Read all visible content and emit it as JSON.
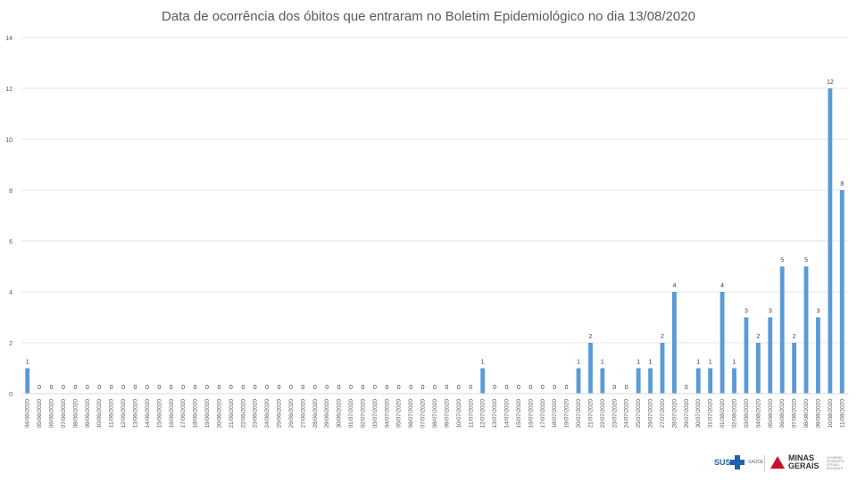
{
  "chart_data": {
    "type": "bar",
    "title": "Data de ocorrência dos óbitos que entraram no Boletim Epidemiológico no dia 13/08/2020",
    "xlabel": "",
    "ylabel": "",
    "ylim": [
      0,
      14
    ],
    "yticks": [
      0,
      2,
      4,
      6,
      8,
      10,
      12,
      14
    ],
    "grid": true,
    "legend": "none",
    "bar_color": "#5b9bd5",
    "categories": [
      "04/06/2020",
      "05/06/2020",
      "06/06/2020",
      "07/06/2020",
      "08/06/2020",
      "09/06/2020",
      "10/06/2020",
      "11/06/2020",
      "12/06/2020",
      "13/06/2020",
      "14/06/2020",
      "15/06/2020",
      "16/06/2020",
      "17/06/2020",
      "18/06/2020",
      "19/06/2020",
      "20/06/2020",
      "21/06/2020",
      "22/06/2020",
      "23/06/2020",
      "24/06/2020",
      "25/06/2020",
      "26/06/2020",
      "27/06/2020",
      "28/06/2020",
      "29/06/2020",
      "30/06/2020",
      "01/07/2020",
      "02/07/2020",
      "03/07/2020",
      "04/07/2020",
      "05/07/2020",
      "06/07/2020",
      "07/07/2020",
      "08/07/2020",
      "09/07/2020",
      "10/07/2020",
      "11/07/2020",
      "12/07/2020",
      "13/07/2020",
      "14/07/2020",
      "15/07/2020",
      "16/07/2020",
      "17/07/2020",
      "18/07/2020",
      "19/07/2020",
      "20/07/2020",
      "21/07/2020",
      "22/07/2020",
      "23/07/2020",
      "24/07/2020",
      "25/07/2020",
      "26/07/2020",
      "27/07/2020",
      "28/07/2020",
      "29/07/2020",
      "30/07/2020",
      "31/07/2020",
      "01/08/2020",
      "02/08/2020",
      "03/08/2020",
      "04/08/2020",
      "05/08/2020",
      "06/08/2020",
      "07/08/2020",
      "08/08/2020",
      "09/08/2020",
      "10/08/2020",
      "11/08/2020"
    ],
    "values": [
      1,
      0,
      0,
      0,
      0,
      0,
      0,
      0,
      0,
      0,
      0,
      0,
      0,
      0,
      0,
      0,
      0,
      0,
      0,
      0,
      0,
      0,
      0,
      0,
      0,
      0,
      0,
      0,
      0,
      0,
      0,
      0,
      0,
      0,
      0,
      0,
      0,
      0,
      1,
      0,
      0,
      0,
      0,
      0,
      0,
      0,
      1,
      2,
      1,
      0,
      0,
      1,
      1,
      2,
      4,
      0,
      1,
      1,
      4,
      1,
      3,
      2,
      3,
      5,
      2,
      5,
      3,
      12,
      8
    ]
  },
  "logos": {
    "sus": "SUS",
    "saude": "SAÚDE",
    "minas_line1": "MINAS",
    "minas_line2": "GERAIS",
    "minas_sub_line1": "GOVERNO",
    "minas_sub_line2": "DIFERENTE.",
    "minas_sub_line3": "ESTADO",
    "minas_sub_line4": "EFICIENTE."
  }
}
